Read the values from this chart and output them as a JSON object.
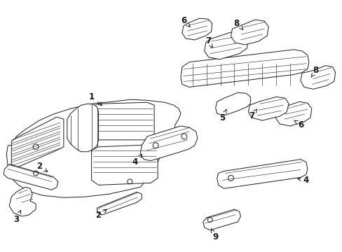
{
  "bg_color": "#ffffff",
  "line_color": "#1a1a1a",
  "fig_width": 4.89,
  "fig_height": 3.6,
  "dpi": 100,
  "lw": 0.7,
  "label_fs": 8.5
}
